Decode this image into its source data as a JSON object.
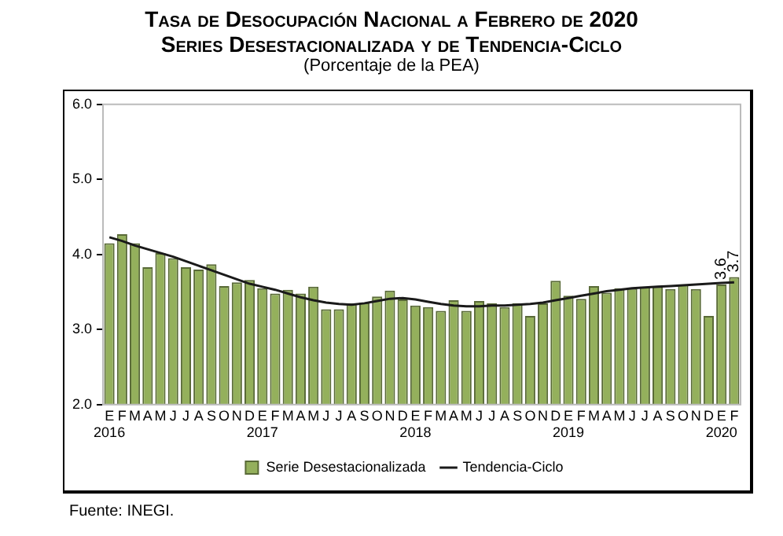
{
  "chart_data": {
    "type": "bar",
    "title": "Tasa de Desocupación Nacional a Febrero de 2020\nSeries Desestacionalizada y de Tendencia-Ciclo",
    "subtitle": "(Porcentaje de la PEA)",
    "categories": [
      "E\n2016",
      "F",
      "M",
      "A",
      "M",
      "J",
      "J",
      "A",
      "S",
      "O",
      "N",
      "D",
      "E\n2017",
      "F",
      "M",
      "A",
      "M",
      "J",
      "J",
      "A",
      "S",
      "O",
      "N",
      "D",
      "E\n2018",
      "F",
      "M",
      "A",
      "M",
      "J",
      "J",
      "A",
      "S",
      "O",
      "N",
      "D",
      "E\n2019",
      "F",
      "M",
      "A",
      "M",
      "J",
      "J",
      "A",
      "S",
      "O",
      "N",
      "D",
      "E\n2020",
      "F"
    ],
    "series": [
      {
        "name": "Serie Desestacionalizada",
        "color": "#94b05c",
        "values": [
          4.15,
          4.27,
          4.15,
          3.83,
          4.02,
          3.95,
          3.83,
          3.8,
          3.87,
          3.58,
          3.63,
          3.66,
          3.55,
          3.48,
          3.53,
          3.48,
          3.57,
          3.27,
          3.27,
          3.35,
          3.36,
          3.44,
          3.52,
          3.4,
          3.32,
          3.3,
          3.25,
          3.39,
          3.25,
          3.38,
          3.35,
          3.3,
          3.35,
          3.18,
          3.35,
          3.65,
          3.45,
          3.41,
          3.58,
          3.49,
          3.55,
          3.55,
          3.57,
          3.57,
          3.54,
          3.6,
          3.54,
          3.18,
          3.6,
          3.7
        ],
        "value_labels": [
          null,
          null,
          null,
          null,
          null,
          null,
          null,
          null,
          null,
          null,
          null,
          null,
          null,
          null,
          null,
          null,
          null,
          null,
          null,
          null,
          null,
          null,
          null,
          null,
          null,
          null,
          null,
          null,
          null,
          null,
          null,
          null,
          null,
          null,
          null,
          null,
          null,
          null,
          null,
          null,
          null,
          null,
          null,
          null,
          null,
          null,
          null,
          null,
          "3.6",
          "3.7"
        ]
      },
      {
        "name": "Tendencia-Ciclo",
        "type": "line",
        "color": "#1a1a1a",
        "values": [
          4.23,
          4.18,
          4.12,
          4.07,
          4.02,
          3.97,
          3.91,
          3.85,
          3.79,
          3.73,
          3.67,
          3.61,
          3.57,
          3.53,
          3.48,
          3.43,
          3.39,
          3.36,
          3.34,
          3.33,
          3.35,
          3.38,
          3.41,
          3.42,
          3.4,
          3.37,
          3.34,
          3.32,
          3.31,
          3.31,
          3.32,
          3.32,
          3.33,
          3.34,
          3.36,
          3.39,
          3.42,
          3.45,
          3.48,
          3.51,
          3.53,
          3.55,
          3.56,
          3.57,
          3.58,
          3.59,
          3.6,
          3.61,
          3.62,
          3.63
        ]
      }
    ],
    "ylim": [
      2,
      6
    ],
    "yticks": [
      {
        "value": 2,
        "label": "2.0"
      },
      {
        "value": 3,
        "label": "3.0"
      },
      {
        "value": 4,
        "label": "4.0"
      },
      {
        "value": 5,
        "label": "5.0"
      },
      {
        "value": 6,
        "label": "6.0"
      }
    ],
    "grid": false,
    "legend": "bottom",
    "marker": "none",
    "line_style": "solid",
    "annotations": [
      "Fuente: INEGI."
    ]
  }
}
